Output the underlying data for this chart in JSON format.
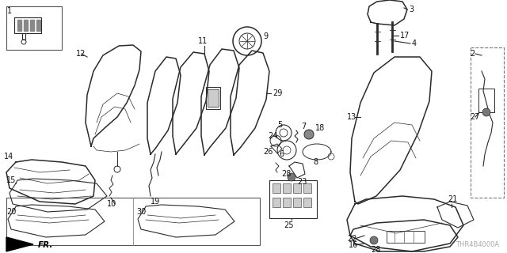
{
  "background_color": "#ffffff",
  "watermark": "THR4B4000A",
  "line_color": "#2a2a2a",
  "label_fontsize": 7.0,
  "label_color": "#111111",
  "figsize": [
    6.4,
    3.2
  ],
  "dpi": 100
}
